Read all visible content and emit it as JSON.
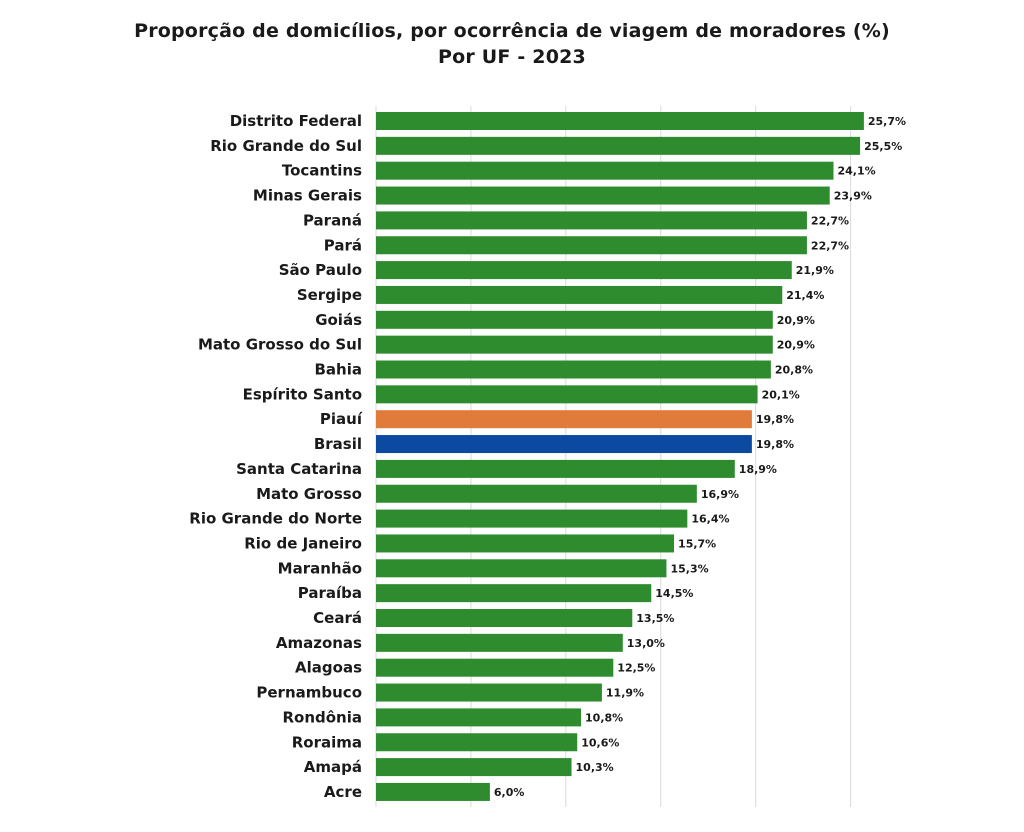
{
  "chart_data": {
    "type": "bar",
    "orientation": "horizontal",
    "title": "Proporção de domicílios, por ocorrência de viagem de moradores (%)",
    "subtitle": "Por UF - 2023",
    "categories": [
      "Distrito Federal",
      "Rio Grande do Sul",
      "Tocantins",
      "Minas Gerais",
      "Paraná",
      "Pará",
      "São Paulo",
      "Sergipe",
      "Goiás",
      "Mato Grosso do Sul",
      "Bahia",
      "Espírito Santo",
      "Piauí",
      "Brasil",
      "Santa Catarina",
      "Mato Grosso",
      "Rio Grande do Norte",
      "Rio de Janeiro",
      "Maranhão",
      "Paraíba",
      "Ceará",
      "Amazonas",
      "Alagoas",
      "Pernambuco",
      "Rondônia",
      "Roraima",
      "Amapá",
      "Acre"
    ],
    "values": [
      25.7,
      25.5,
      24.1,
      23.9,
      22.7,
      22.7,
      21.9,
      21.4,
      20.9,
      20.9,
      20.8,
      20.1,
      19.8,
      19.8,
      18.9,
      16.9,
      16.4,
      15.7,
      15.3,
      14.5,
      13.5,
      13.0,
      12.5,
      11.9,
      10.8,
      10.6,
      10.3,
      6.0
    ],
    "data_labels": [
      "25,7%",
      "25,5%",
      "24,1%",
      "23,9%",
      "22,7%",
      "22,7%",
      "21,9%",
      "21,4%",
      "20,9%",
      "20,9%",
      "20,8%",
      "20,1%",
      "19,8%",
      "19,8%",
      "18,9%",
      "16,9%",
      "16,4%",
      "15,7%",
      "15,3%",
      "14,5%",
      "13,5%",
      "13,0%",
      "12,5%",
      "11,9%",
      "10,8%",
      "10,6%",
      "10,3%",
      "6,0%"
    ],
    "highlight": {
      "Piauí": "#e07b3a",
      "Brasil": "#0b4aa0"
    },
    "default_color": "#2e8b2e",
    "xlim": [
      0,
      30
    ],
    "xlabel": "",
    "ylabel": "",
    "grid": "vertical",
    "legend": "none"
  }
}
